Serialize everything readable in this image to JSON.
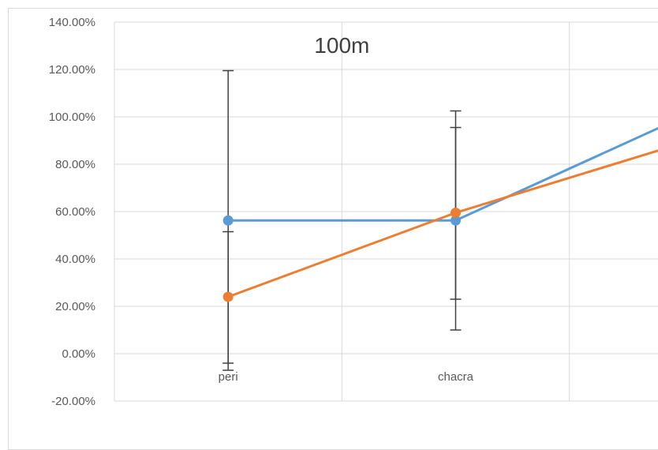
{
  "chart_data": {
    "type": "line",
    "title": "100m",
    "categories": [
      "peri",
      "chacra",
      ""
    ],
    "ylim": [
      -0.2,
      1.4
    ],
    "yticks": [
      1.4,
      1.2,
      1.0,
      0.8,
      0.6,
      0.4,
      0.2,
      0.0,
      -0.2
    ],
    "ytick_labels": [
      "140.00%",
      "120.00%",
      "100.00%",
      "80.00%",
      "60.00%",
      "40.00%",
      "20.00%",
      "0.00%",
      "-20.00%"
    ],
    "grid": true,
    "legend": "none",
    "series": [
      {
        "color": "#5b9bd5",
        "values": [
          0.5625,
          0.5625,
          1.0
        ],
        "error_bars": [
          [
            -0.07,
            1.195
          ],
          [
            0.23,
            0.955
          ],
          null
        ]
      },
      {
        "color": "#ed7d31",
        "values": [
          0.24,
          0.595,
          0.89
        ],
        "error_bars": [
          [
            -0.04,
            0.515
          ],
          [
            0.1,
            1.025
          ],
          null
        ]
      }
    ]
  }
}
